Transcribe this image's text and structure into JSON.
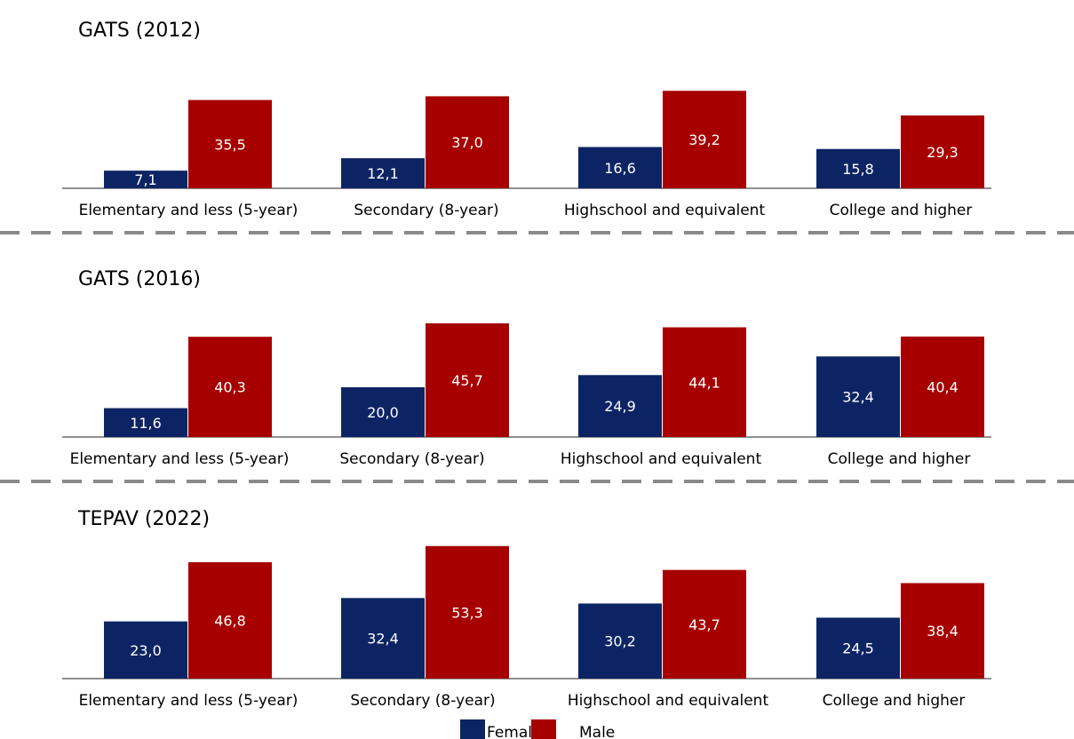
{
  "chart_data": [
    {
      "type": "bar",
      "title": "GATS (2012)",
      "categories": [
        "Elementary and less (5-year)",
        "Secondary (8-year)",
        "Highschool and equivalent",
        "College and higher"
      ],
      "series": [
        {
          "name": "Female",
          "values": [
            7.1,
            12.1,
            16.6,
            15.8
          ],
          "labels": [
            "7,1",
            "12,1",
            "16,6",
            "15,8"
          ]
        },
        {
          "name": "Male",
          "values": [
            35.5,
            37.0,
            39.2,
            29.3
          ],
          "labels": [
            "35,5",
            "37,0",
            "39,2",
            "29,3"
          ]
        }
      ]
    },
    {
      "type": "bar",
      "title": "GATS (2016)",
      "categories": [
        "Elementary and less (5-year)",
        "Secondary (8-year)",
        "Highschool and equivalent",
        "College and higher"
      ],
      "series": [
        {
          "name": "Female",
          "values": [
            11.6,
            20.0,
            24.9,
            32.4
          ],
          "labels": [
            "11,6",
            "20,0",
            "24,9",
            "32,4"
          ]
        },
        {
          "name": "Male",
          "values": [
            40.3,
            45.7,
            44.1,
            40.4
          ],
          "labels": [
            "40,3",
            "45,7",
            "44,1",
            "40,4"
          ]
        }
      ]
    },
    {
      "type": "bar",
      "title": "TEPAV (2022)",
      "categories": [
        "Elementary and less (5-year)",
        "Secondary (8-year)",
        "Highschool and equivalent",
        "College and higher"
      ],
      "series": [
        {
          "name": "Female",
          "values": [
            23.0,
            32.4,
            30.2,
            24.5
          ],
          "labels": [
            "23,0",
            "32,4",
            "30,2",
            "24,5"
          ]
        },
        {
          "name": "Male",
          "values": [
            46.8,
            53.3,
            43.7,
            38.4
          ],
          "labels": [
            "46,8",
            "53,3",
            "43,7",
            "38,4"
          ]
        }
      ]
    }
  ],
  "legend": {
    "position": "bottom-center",
    "items": [
      {
        "label": "Female",
        "color": "#0d2464"
      },
      {
        "label": "Male",
        "color": "#a60000"
      }
    ]
  },
  "colors": {
    "female": "#0d2464",
    "male": "#a60000",
    "divider": "#8a8a8a"
  }
}
